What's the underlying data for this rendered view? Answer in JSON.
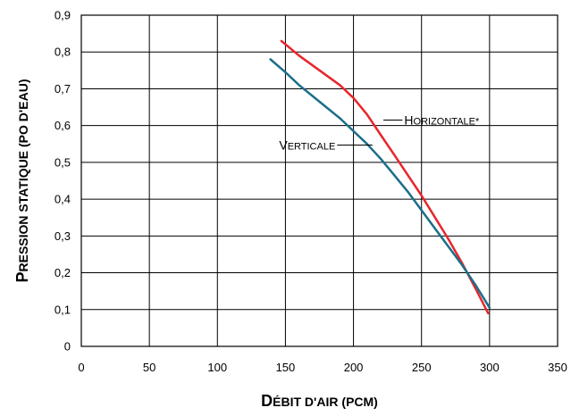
{
  "chart_data": {
    "type": "line",
    "xlabel": "Débit d'air (pcm)",
    "ylabel": "Pression statique (po d'eau)",
    "xlim": [
      0,
      350
    ],
    "ylim": [
      0,
      0.9
    ],
    "xticks": [
      "0",
      "50",
      "100",
      "150",
      "200",
      "250",
      "300",
      "350"
    ],
    "yticks": [
      "0",
      "0,1",
      "0,2",
      "0,3",
      "0,4",
      "0,5",
      "0,6",
      "0,7",
      "0,8",
      "0,9"
    ],
    "grid": true,
    "series": [
      {
        "name": "Horizontale*",
        "color": "#e8262c",
        "x": [
          147,
          160,
          175,
          190,
          200,
          210,
          220,
          230,
          240,
          250,
          260,
          270,
          280,
          290,
          299
        ],
        "y": [
          0.83,
          0.79,
          0.75,
          0.71,
          0.675,
          0.63,
          0.575,
          0.52,
          0.465,
          0.41,
          0.35,
          0.29,
          0.225,
          0.155,
          0.09
        ]
      },
      {
        "name": "Verticale",
        "color": "#1b6e8a",
        "x": [
          139,
          150,
          160,
          175,
          190,
          200,
          210,
          220,
          230,
          240,
          250,
          260,
          270,
          280,
          290,
          300
        ],
        "y": [
          0.78,
          0.745,
          0.71,
          0.665,
          0.62,
          0.585,
          0.55,
          0.51,
          0.465,
          0.42,
          0.37,
          0.32,
          0.27,
          0.22,
          0.165,
          0.105
        ]
      }
    ],
    "annotations": [
      {
        "text": "Horizontale*",
        "series": "Horizontale*"
      },
      {
        "text": "Verticale",
        "series": "Verticale"
      }
    ]
  }
}
